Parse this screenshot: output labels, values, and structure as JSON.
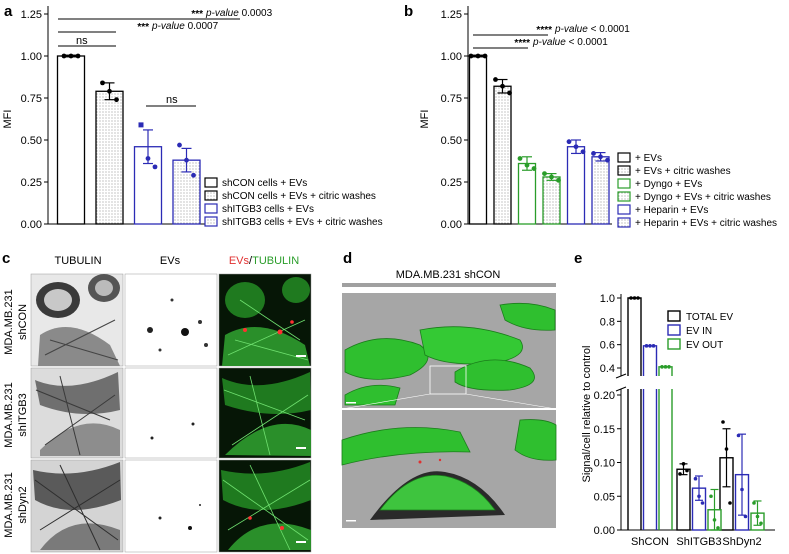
{
  "panels": {
    "a": "a",
    "b": "b",
    "c": "c",
    "d": "d",
    "e": "e"
  },
  "chart_data": [
    {
      "type": "bar",
      "panel": "a",
      "ylabel": "MFI",
      "ylim": [
        0,
        1.25
      ],
      "yticks": [
        "0.00",
        "0.25",
        "0.50",
        "0.75",
        "1.00",
        "1.25"
      ],
      "yticks_values": [
        0,
        0.25,
        0.5,
        0.75,
        1.0,
        1.25
      ],
      "grid": false,
      "categories": [
        "shCON cells + EVs",
        "shCON cells + EVs + citric washes",
        "shITGB3 cells + EVs",
        "shITGB3 cells + EVs + citric washes"
      ],
      "values": [
        1.0,
        0.79,
        0.46,
        0.38
      ],
      "errors": [
        0.005,
        0.05,
        0.1,
        0.07
      ],
      "points": [
        [
          1.0,
          1.0,
          1.0
        ],
        [
          0.84,
          0.79,
          0.74
        ],
        [
          0.59,
          0.39,
          0.34
        ],
        [
          0.47,
          0.38,
          0.29
        ]
      ],
      "colors": [
        "#000000",
        "#000000",
        "#2b2bb5",
        "#2b2bb5"
      ],
      "fills": [
        "white",
        "dots",
        "white",
        "dots"
      ],
      "legend_position": "bottom-right",
      "annotations": [
        {
          "stars": "***",
          "text": "p-value 0.0003"
        },
        {
          "stars": "***",
          "text": "p-value 0.0007"
        },
        {
          "text": "ns"
        },
        {
          "text": "ns"
        }
      ]
    },
    {
      "type": "bar",
      "panel": "b",
      "ylabel": "MFI",
      "ylim": [
        0,
        1.25
      ],
      "yticks": [
        "0.00",
        "0.25",
        "0.50",
        "0.75",
        "1.00",
        "1.25"
      ],
      "yticks_values": [
        0,
        0.25,
        0.5,
        0.75,
        1.0,
        1.25
      ],
      "grid": false,
      "categories": [
        "+ EVs",
        "+ EVs + citric washes",
        "+ Dyngo + EVs",
        "+ Dyngo + EVs + citric washes",
        "+ Heparin + EVs",
        "+ Heparin + EVs + citric washes"
      ],
      "values": [
        1.0,
        0.82,
        0.36,
        0.28,
        0.46,
        0.4
      ],
      "errors": [
        0.005,
        0.04,
        0.04,
        0.02,
        0.04,
        0.025
      ],
      "points": [
        [
          1.0,
          1.0,
          1.0
        ],
        [
          0.86,
          0.82,
          0.78
        ],
        [
          0.39,
          0.35,
          0.33
        ],
        [
          0.3,
          0.28,
          0.26
        ],
        [
          0.49,
          0.46,
          0.43
        ],
        [
          0.42,
          0.4,
          0.38
        ]
      ],
      "colors": [
        "#000000",
        "#000000",
        "#2a9d2a",
        "#2a9d2a",
        "#2b2bb5",
        "#2b2bb5"
      ],
      "fills": [
        "white",
        "dots",
        "white",
        "dots",
        "white",
        "dots"
      ],
      "legend_position": "bottom-right",
      "annotations": [
        {
          "stars": "****",
          "text": "p-value < 0.0001"
        },
        {
          "stars": "****",
          "text": "p-value < 0.0001"
        }
      ]
    },
    {
      "type": "bar",
      "panel": "e",
      "ylabel": "Signal/cell relative to control",
      "ylim_lower": [
        0,
        0.2
      ],
      "ylim_upper": [
        0.4,
        1.0
      ],
      "yticks_lower": [
        "0.00",
        "0.05",
        "0.10",
        "0.15",
        "0.20"
      ],
      "yticks_lower_values": [
        0,
        0.05,
        0.1,
        0.15,
        0.2
      ],
      "yticks_upper": [
        "0.4",
        "0.6",
        "0.8",
        "1.0"
      ],
      "yticks_upper_values": [
        0.4,
        0.6,
        0.8,
        1.0
      ],
      "grid": false,
      "broken_axis": true,
      "categories": [
        "ShCON",
        "ShITGB3",
        "ShDyn2"
      ],
      "series": [
        {
          "name": "TOTAL EV",
          "color": "#000000",
          "values": [
            1.0,
            0.09,
            0.107
          ],
          "errors": [
            0.0,
            0.008,
            0.043
          ],
          "points": [
            [
              1.0,
              1.0,
              1.0
            ],
            [
              0.083,
              0.098,
              0.088
            ],
            [
              0.16,
              0.12,
              0.04
            ]
          ]
        },
        {
          "name": "EV IN",
          "color": "#2b2bb5",
          "values": [
            0.59,
            0.062,
            0.082
          ],
          "errors": [
            0.0,
            0.018,
            0.06
          ],
          "points": [
            [
              0.59,
              0.59,
              0.59
            ],
            [
              0.076,
              0.05,
              0.04
            ],
            [
              0.14,
              0.06,
              0.02
            ]
          ]
        },
        {
          "name": "EV OUT",
          "color": "#2a9d2a",
          "values": [
            0.41,
            0.03,
            0.025
          ],
          "errors": [
            0.0,
            0.03,
            0.018
          ],
          "points": [
            [
              0.41,
              0.41,
              0.41
            ],
            [
              0.05,
              0.015,
              0.003
            ],
            [
              0.04,
              0.02,
              0.01
            ]
          ]
        }
      ],
      "legend_position": "top-right"
    }
  ],
  "micrograph": {
    "col_headers": [
      "TUBULIN",
      "EVs"
    ],
    "merge_header": {
      "red": "EVs",
      "sep": "/",
      "green": "TUBULIN"
    },
    "row_labels": [
      {
        "line1": "MDA.MB.231",
        "line2": "shCON"
      },
      {
        "line1": "MDA.MB.231",
        "line2": "shITGB3"
      },
      {
        "line1": "MDA.MB.231",
        "line2": "shDyn2"
      }
    ]
  },
  "render3d": {
    "title": "MDA.MB.231 shCON"
  },
  "style": {
    "black": "#000000",
    "blue": "#2b2bb5",
    "green": "#2a9d2a",
    "cell_green": "#2fc42f",
    "red": "#e03030",
    "render_bg": "#a6a6a6"
  }
}
